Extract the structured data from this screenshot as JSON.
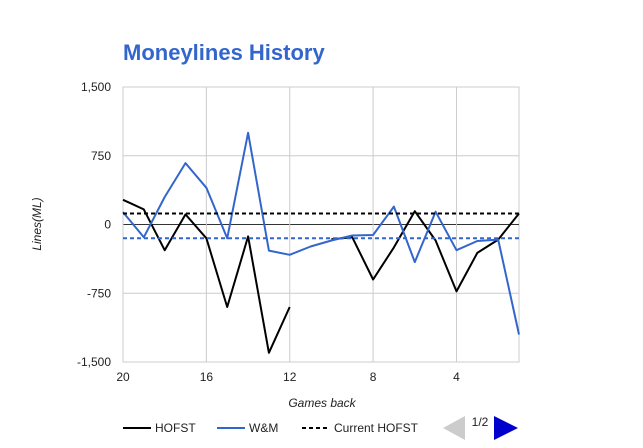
{
  "chart_data": {
    "type": "line",
    "title": "Moneylines History",
    "xlabel": "Games back",
    "ylabel": "Lines(ML)",
    "xlim": [
      20,
      1
    ],
    "ylim": [
      -1500,
      1500
    ],
    "x_ticks": [
      20,
      16,
      12,
      8,
      4
    ],
    "y_ticks": [
      1500,
      750,
      0,
      -750,
      -1500
    ],
    "y_tick_labels": [
      "1,500",
      "750",
      "0",
      "-750",
      "-1,500"
    ],
    "grid": true,
    "legend_position": "bottom",
    "series": [
      {
        "name": "HOFST",
        "color": "#000000",
        "style": "solid",
        "points": [
          [
            20,
            270
          ],
          [
            19,
            165
          ],
          [
            18,
            -280
          ],
          [
            17,
            110
          ],
          [
            16,
            -150
          ],
          [
            15,
            -900
          ],
          [
            14,
            -130
          ],
          [
            13,
            -1400
          ],
          [
            12,
            -900
          ],
          null,
          [
            10,
            -160
          ],
          [
            9,
            -140
          ],
          [
            8,
            -600
          ],
          [
            7,
            -250
          ],
          [
            6,
            145
          ],
          [
            5,
            -175
          ],
          [
            4,
            -730
          ],
          [
            3,
            -310
          ],
          [
            2,
            -165
          ],
          [
            1,
            120
          ]
        ]
      },
      {
        "name": "W&M",
        "color": "#3366cc",
        "style": "solid",
        "points": [
          [
            20,
            135
          ],
          [
            19,
            -140
          ],
          [
            18,
            300
          ],
          [
            17,
            670
          ],
          [
            16,
            400
          ],
          [
            15,
            -150
          ],
          [
            14,
            1000
          ],
          [
            13,
            -285
          ],
          [
            12,
            -330
          ],
          [
            11,
            -240
          ],
          [
            10,
            -175
          ],
          [
            9,
            -120
          ],
          [
            8,
            -115
          ],
          [
            7,
            195
          ],
          [
            6,
            -410
          ],
          [
            5,
            140
          ],
          [
            4,
            -280
          ],
          [
            3,
            -180
          ],
          [
            2,
            -165
          ],
          [
            1,
            -1200
          ]
        ]
      },
      {
        "name": "Current HOFST",
        "color": "#000000",
        "style": "dashed",
        "points": [
          [
            20,
            120
          ],
          [
            1,
            120
          ]
        ]
      },
      {
        "name": "",
        "color": "#3366cc",
        "style": "dashed",
        "points": [
          [
            20,
            -150
          ],
          [
            1,
            -150
          ]
        ]
      }
    ]
  },
  "pager": {
    "label": "1/2",
    "prev_color": "#cccccc",
    "next_color": "#0000cc"
  }
}
